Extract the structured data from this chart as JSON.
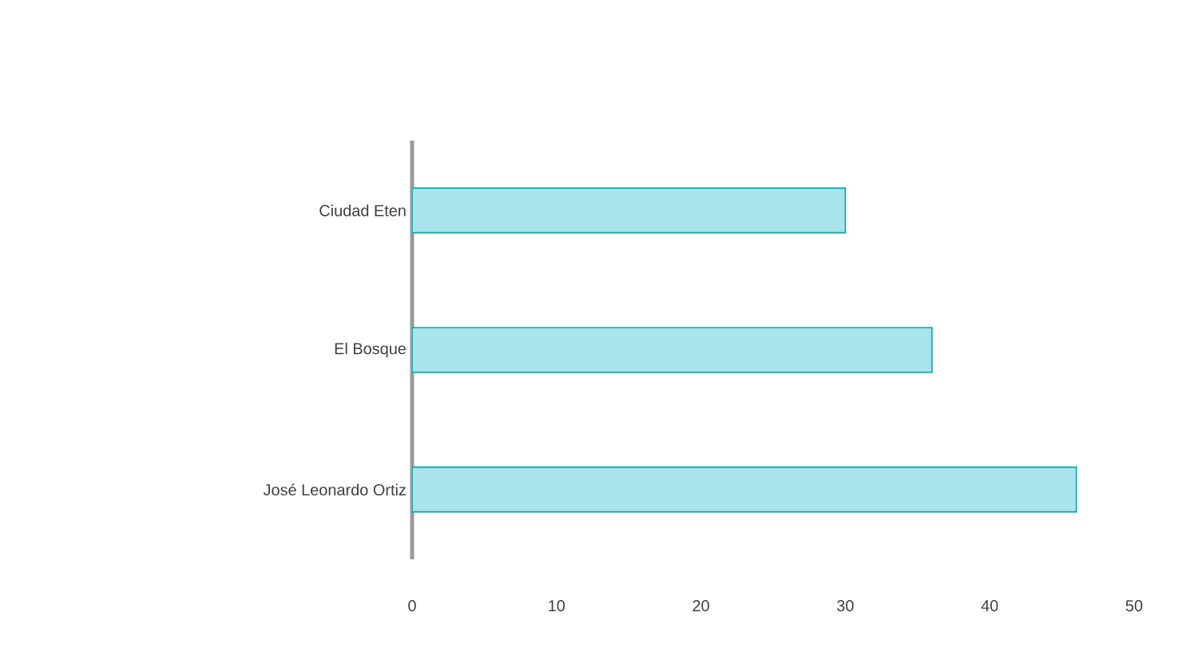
{
  "chart_data": {
    "type": "bar",
    "orientation": "horizontal",
    "categories": [
      "Ciudad Eten",
      "El Bosque",
      "José Leonardo Ortiz"
    ],
    "values": [
      30,
      36,
      46
    ],
    "color": "#a8e3ee",
    "xlim": [
      0,
      50
    ],
    "xticks": [
      0,
      10,
      20,
      30,
      40,
      50
    ],
    "grid": false
  }
}
